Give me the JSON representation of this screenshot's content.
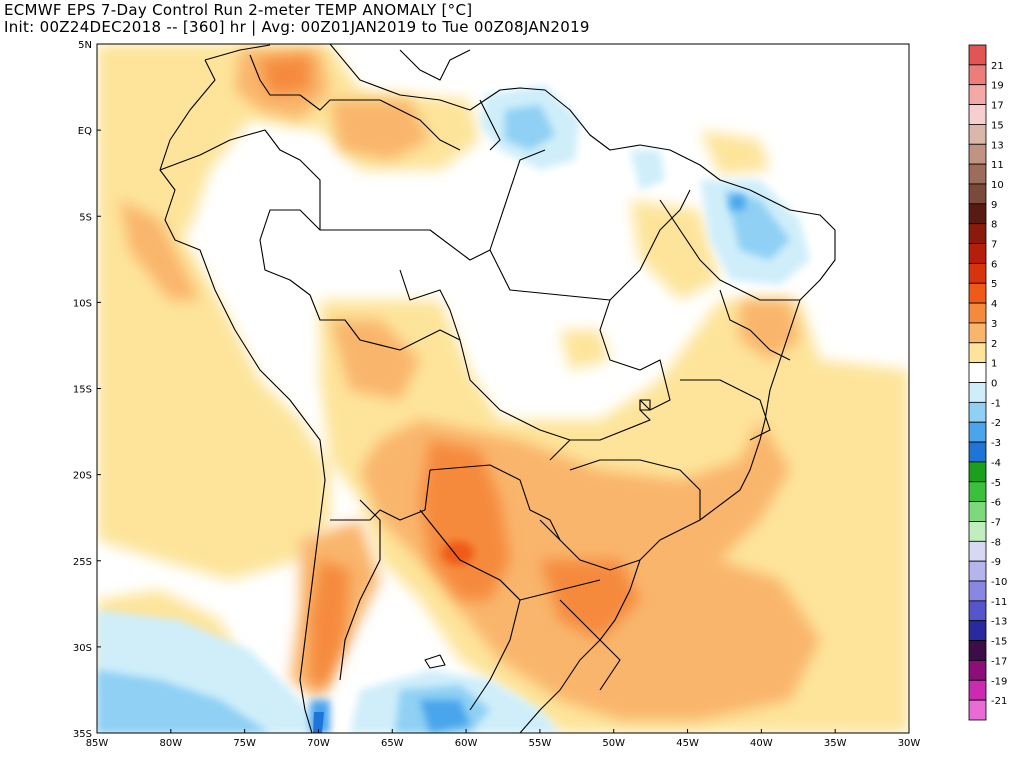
{
  "title": {
    "line1": "ECMWF EPS 7-Day Control Run 2-meter TEMP ANOMALY [°C]",
    "line2": "Init: 00Z24DEC2018 -- [360] hr | Avg: 00Z01JAN2019 to Tue 00Z08JAN2019"
  },
  "map": {
    "lat_labels": [
      "5N",
      "EQ",
      "5S",
      "10S",
      "15S",
      "20S",
      "25S",
      "30S",
      "35S"
    ],
    "lon_labels": [
      "85W",
      "80W",
      "75W",
      "70W",
      "65W",
      "60W",
      "55W",
      "50W",
      "45W",
      "40W",
      "35W",
      "30W"
    ]
  },
  "colorbar": {
    "labels": [
      "21",
      "19",
      "17",
      "15",
      "13",
      "11",
      "10",
      "9",
      "8",
      "7",
      "6",
      "5",
      "4",
      "3",
      "2",
      "1",
      "0",
      "-1",
      "-2",
      "-3",
      "-4",
      "-5",
      "-6",
      "-7",
      "-8",
      "-9",
      "-10",
      "-11",
      "-13",
      "-15",
      "-17",
      "-19",
      "-21"
    ],
    "colors": [
      "#e25555",
      "#ec7d7d",
      "#f4a8a8",
      "#f7cfcf",
      "#d9b7aa",
      "#c09383",
      "#9e6c5b",
      "#7a4a3b",
      "#5a1a14",
      "#8a1a0a",
      "#b41e0a",
      "#d8340c",
      "#f05a18",
      "#f58a3c",
      "#f9b56c",
      "#fde49a",
      "#ffffff",
      "#cfeefa",
      "#8fd0f4",
      "#4aa5ec",
      "#1f74d8",
      "#1aa01a",
      "#3cbf3c",
      "#7ed97e",
      "#bfefbf",
      "#d8d8f4",
      "#b5b5ee",
      "#8888e2",
      "#5555cc",
      "#2a2aa0",
      "#3d0d4a",
      "#8c0e78",
      "#cc2ab0",
      "#ea6ad6"
    ]
  }
}
